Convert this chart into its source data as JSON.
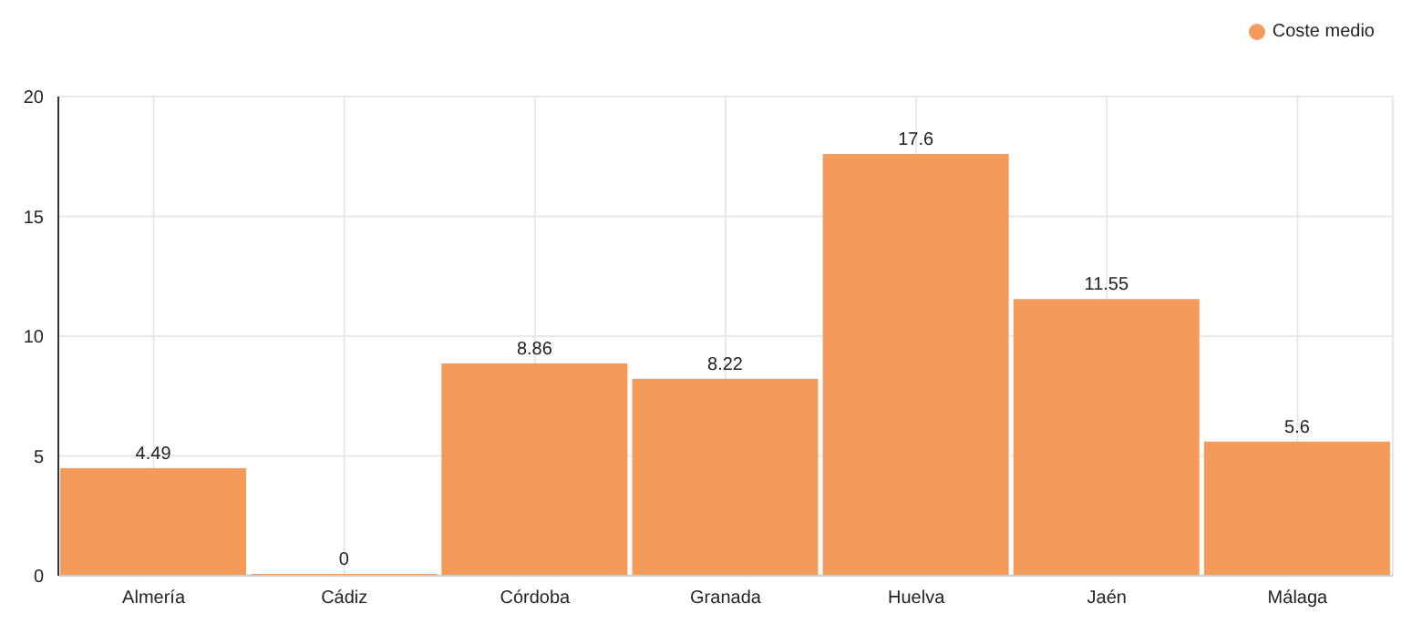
{
  "chart_data": {
    "type": "bar",
    "categories": [
      "Almería",
      "Cádiz",
      "Córdoba",
      "Granada",
      "Huelva",
      "Jaén",
      "Málaga"
    ],
    "series": [
      {
        "name": "Coste medio",
        "color": "#f49b5c",
        "values": [
          4.49,
          0,
          8.86,
          8.22,
          17.6,
          11.55,
          5.6
        ]
      }
    ],
    "ylim": [
      0,
      20
    ],
    "yticks": [
      0,
      5,
      10,
      15,
      20
    ],
    "grid": true,
    "legend": "top right",
    "data_labels": true
  }
}
